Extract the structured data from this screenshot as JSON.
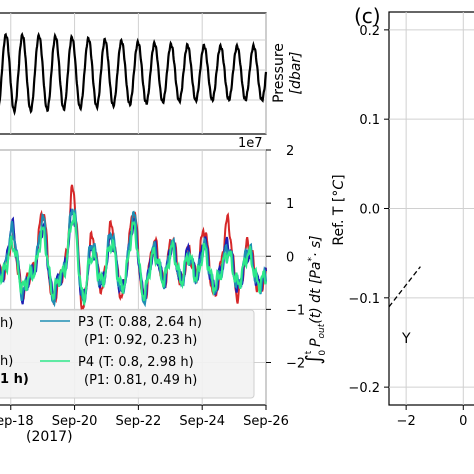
{
  "panel_label": "(c)",
  "chart_data": [
    {
      "id": "pressure",
      "type": "line",
      "xlabel": "",
      "ylabel": "Pressure",
      "ylabel_unit": "[dbar]",
      "x_unit": "days since 2017-09-17 00:00",
      "x_range": [
        17.6,
        26.0
      ],
      "period_hours": 12.42,
      "cycles_visible": 16,
      "grid": true,
      "series": [
        {
          "color": "#000000"
        }
      ]
    },
    {
      "id": "integrated-power",
      "type": "line",
      "ylabel_tex": "∫₀ᵗ Pout(t) dt [Pa*·s]",
      "ylabel_parts": {
        "int_sub": "0",
        "int_sup": "t",
        "p": "P",
        "p_sub": "out",
        "mid": "(t) dt [",
        "unit_a": "Pa",
        "star": "*",
        "unit_b": "· s]"
      },
      "offset_text": "1e7",
      "ylim": [
        -2.8,
        2.0
      ],
      "yticks": [
        "2",
        "1",
        "0",
        "−1",
        "−2"
      ],
      "xticks": [
        "Sep-18",
        "Sep-20",
        "Sep-22",
        "Sep-24",
        "Sep-26"
      ],
      "xlabel": "(2017)",
      "grid": true,
      "series": [
        {
          "name": "",
          "color": "#d62728"
        },
        {
          "name": "",
          "color": "#1f1fb4"
        },
        {
          "name": "P3 (T: 0.88, 2.64 h)",
          "subtitle": "(P1: 0.92, 0.23 h)",
          "color": "#1f8fb4"
        },
        {
          "name": "P4 (T: 0.8, 2.98 h)",
          "subtitle": "(P1: 0.81, 0.49 h)",
          "color": "#2ee88a"
        }
      ],
      "legend_partial_left": [
        "h)",
        "h)",
        "1 h)"
      ],
      "x_days": [
        17.6,
        17.85,
        18.05,
        18.3,
        18.55,
        18.8,
        18.9,
        19.05,
        19.3,
        19.55,
        19.7,
        19.85,
        20.1,
        20.35,
        20.55,
        20.75,
        20.95,
        21.1,
        21.4,
        21.6,
        21.8,
        22.05,
        22.25,
        22.5,
        22.7,
        22.95,
        23.2,
        23.4,
        23.65,
        23.85,
        24.05,
        24.25,
        24.45,
        24.7,
        24.9,
        25.1,
        25.3,
        25.5,
        25.75,
        26.0
      ]
    },
    {
      "id": "ref-temp",
      "type": "line",
      "ylabel": "Ref. T [",
      "ylabel_unit": "°C",
      "ylabel_end": "]",
      "ylim": [
        -0.22,
        0.22
      ],
      "yticks": [
        "0.2",
        "0.1",
        "0.0",
        "−0.1",
        "−0.2"
      ],
      "ytick_values": [
        0.2,
        0.1,
        0.0,
        -0.1,
        -0.2
      ],
      "xticks": [
        "−2",
        "0"
      ],
      "xtick_values": [
        -2,
        0
      ],
      "annotation": "Y",
      "grid": true,
      "series": [
        {
          "style": "dashed",
          "color": "#000000",
          "x": [
            -2.7,
            -1.5
          ],
          "y": [
            -0.11,
            -0.065
          ]
        }
      ]
    }
  ]
}
